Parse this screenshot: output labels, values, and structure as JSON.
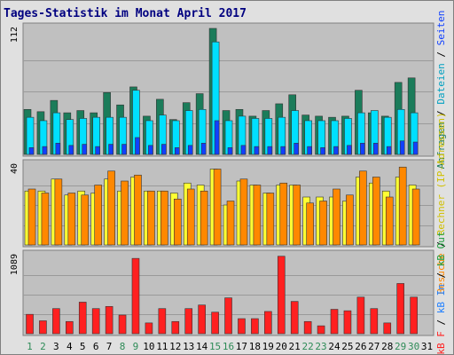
{
  "window": {
    "title": "Tages-Statistik im Monat April 2017"
  },
  "colors": {
    "panel_bg": "#c0c0c0",
    "anfragen": "#1b7c5a",
    "dateien": "#00e0ff",
    "seiten": "#1040ff",
    "rechner": "#ffff33",
    "besuche": "#ff8800",
    "kb": "#ff2020",
    "weekday_label": "#008040",
    "weekend_label": "#2e8b57"
  },
  "chart_data": [
    {
      "type": "bar",
      "title": "Tages-Statistik im Monat April 2017",
      "ymax_label": "112",
      "ylim": [
        0,
        112
      ],
      "categories": [
        "1",
        "2",
        "3",
        "4",
        "5",
        "6",
        "7",
        "8",
        "9",
        "10",
        "11",
        "12",
        "13",
        "14",
        "15",
        "16",
        "17",
        "18",
        "19",
        "20",
        "21",
        "22",
        "23",
        "24",
        "25",
        "26",
        "27",
        "28",
        "29",
        "30",
        "31"
      ],
      "legend": [
        "Anfragen",
        "Dateien",
        "Seiten"
      ],
      "series": [
        {
          "name": "Anfragen",
          "values": [
            40,
            38,
            48,
            37,
            39,
            37,
            55,
            44,
            60,
            34,
            49,
            31,
            46,
            54,
            112,
            39,
            40,
            34,
            39,
            45,
            53,
            35,
            34,
            33,
            34,
            57,
            37,
            34,
            64,
            68,
            null
          ]
        },
        {
          "name": "Dateien",
          "values": [
            33,
            30,
            37,
            31,
            32,
            33,
            33,
            33,
            57,
            30,
            35,
            30,
            39,
            40,
            100,
            30,
            34,
            32,
            32,
            33,
            39,
            30,
            30,
            30,
            32,
            37,
            39,
            33,
            40,
            37,
            null
          ]
        },
        {
          "name": "Seiten",
          "values": [
            6,
            7,
            10,
            8,
            9,
            7,
            9,
            9,
            15,
            8,
            9,
            6,
            8,
            10,
            30,
            6,
            8,
            7,
            7,
            7,
            10,
            7,
            6,
            7,
            8,
            10,
            10,
            7,
            12,
            11,
            null
          ]
        }
      ]
    },
    {
      "type": "bar",
      "ymax_label": "40",
      "ylim": [
        0,
        40
      ],
      "categories": [
        "1",
        "2",
        "3",
        "4",
        "5",
        "6",
        "7",
        "8",
        "9",
        "10",
        "11",
        "12",
        "13",
        "14",
        "15",
        "16",
        "17",
        "18",
        "19",
        "20",
        "21",
        "22",
        "23",
        "24",
        "25",
        "26",
        "27",
        "28",
        "29",
        "30",
        "31"
      ],
      "legend": [
        "Rechner (IP-Adressen)",
        "Besuche"
      ],
      "series": [
        {
          "name": "Rechner (IP-Adressen)",
          "values": [
            27,
            27,
            33,
            25,
            27,
            26,
            33,
            27,
            34,
            27,
            27,
            26,
            31,
            30,
            38,
            20,
            32,
            30,
            26,
            30,
            30,
            24,
            24,
            24,
            22,
            34,
            31,
            27,
            34,
            30,
            null
          ]
        },
        {
          "name": "Besuche",
          "values": [
            28,
            26,
            33,
            26,
            25,
            30,
            37,
            32,
            35,
            27,
            27,
            23,
            28,
            27,
            38,
            22,
            33,
            30,
            26,
            31,
            30,
            21,
            22,
            28,
            25,
            37,
            34,
            24,
            39,
            28,
            null
          ]
        }
      ]
    },
    {
      "type": "bar",
      "ymax_label": "1089",
      "ylim": [
        0,
        1089
      ],
      "categories": [
        "1",
        "2",
        "3",
        "4",
        "5",
        "6",
        "7",
        "8",
        "9",
        "10",
        "11",
        "12",
        "13",
        "14",
        "15",
        "16",
        "17",
        "18",
        "19",
        "20",
        "21",
        "22",
        "23",
        "24",
        "25",
        "26",
        "27",
        "28",
        "29",
        "30",
        "31"
      ],
      "legend": [
        "kB F",
        "kB In",
        "kB Out"
      ],
      "series": [
        {
          "name": "kB F",
          "values": [
            270,
            180,
            350,
            170,
            440,
            350,
            380,
            260,
            1050,
            150,
            350,
            170,
            350,
            400,
            300,
            500,
            210,
            210,
            310,
            1080,
            450,
            170,
            110,
            340,
            320,
            510,
            350,
            150,
            700,
            510,
            null
          ]
        }
      ]
    }
  ],
  "legend_text": {
    "top": [
      {
        "text": "Anfragen",
        "color": "#1b7c5a"
      },
      {
        "text": " / ",
        "color": "#000000"
      },
      {
        "text": "Dateien",
        "color": "#00a0c0"
      },
      {
        "text": " / ",
        "color": "#000000"
      },
      {
        "text": "Seiten",
        "color": "#1040ff"
      }
    ],
    "middle": [
      {
        "text": "Besuche",
        "color": "#ff8800"
      },
      {
        "text": " / ",
        "color": "#000000"
      },
      {
        "text": "Rechner (IP-Adressen)",
        "color": "#d0c000"
      }
    ],
    "bottom": [
      {
        "text": "kB F",
        "color": "#ff2020"
      },
      {
        "text": " / ",
        "color": "#000000"
      },
      {
        "text": "kB In",
        "color": "#2080ff"
      },
      {
        "text": " / ",
        "color": "#000000"
      },
      {
        "text": "kB Out",
        "color": "#1b9c3a"
      }
    ]
  },
  "x_labels": [
    {
      "text": "1",
      "weekend": true
    },
    {
      "text": "2",
      "weekend": true
    },
    {
      "text": "3",
      "weekend": false
    },
    {
      "text": "4",
      "weekend": false
    },
    {
      "text": "5",
      "weekend": false
    },
    {
      "text": "6",
      "weekend": false
    },
    {
      "text": "7",
      "weekend": false
    },
    {
      "text": "8",
      "weekend": true
    },
    {
      "text": "9",
      "weekend": true
    },
    {
      "text": "10",
      "weekend": false
    },
    {
      "text": "11",
      "weekend": false
    },
    {
      "text": "12",
      "weekend": false
    },
    {
      "text": "13",
      "weekend": false
    },
    {
      "text": "14",
      "weekend": false
    },
    {
      "text": "15",
      "weekend": true
    },
    {
      "text": "16",
      "weekend": true
    },
    {
      "text": "17",
      "weekend": false
    },
    {
      "text": "18",
      "weekend": false
    },
    {
      "text": "19",
      "weekend": false
    },
    {
      "text": "20",
      "weekend": false
    },
    {
      "text": "21",
      "weekend": false
    },
    {
      "text": "22",
      "weekend": true
    },
    {
      "text": "23",
      "weekend": true
    },
    {
      "text": "24",
      "weekend": false
    },
    {
      "text": "25",
      "weekend": false
    },
    {
      "text": "26",
      "weekend": false
    },
    {
      "text": "27",
      "weekend": false
    },
    {
      "text": "28",
      "weekend": false
    },
    {
      "text": "29",
      "weekend": true
    },
    {
      "text": "30",
      "weekend": true
    },
    {
      "text": "31",
      "weekend": false
    }
  ]
}
